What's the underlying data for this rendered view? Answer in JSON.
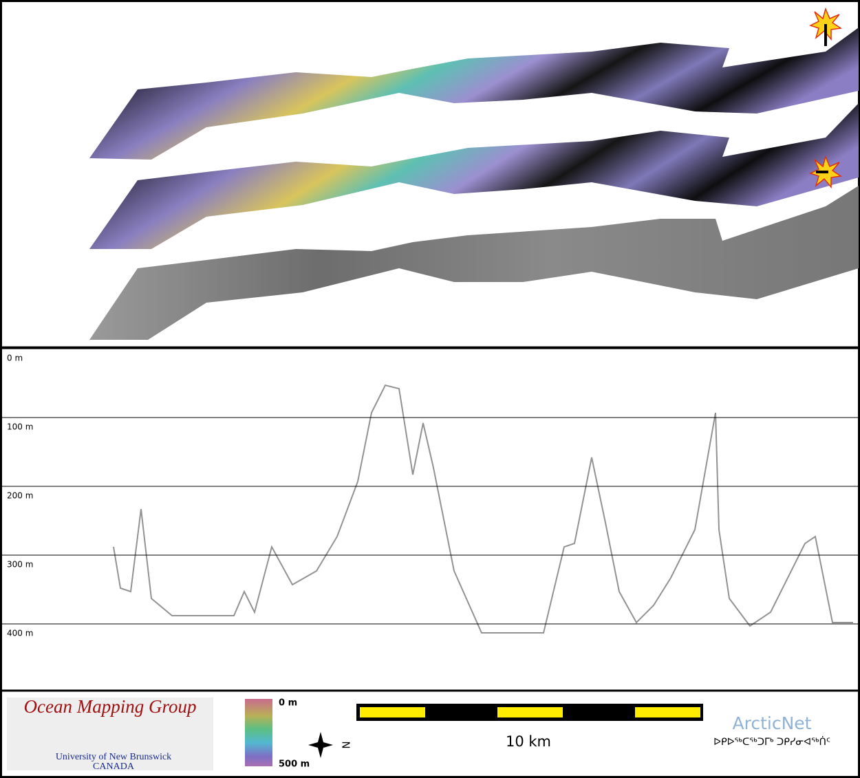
{
  "depth_profile": {
    "ylim": [
      0,
      500
    ],
    "yticks": [
      {
        "value": 0,
        "label": "0 m"
      },
      {
        "value": 100,
        "label": "100 m"
      },
      {
        "value": 200,
        "label": "200 m"
      },
      {
        "value": 300,
        "label": "300 m"
      },
      {
        "value": 400,
        "label": "400 m"
      }
    ]
  },
  "footer": {
    "logo_title": "Ocean Mapping Group",
    "logo_line_1": "University of New Brunswick",
    "logo_line_2": "CANADA",
    "colorbar_top": "0 m",
    "colorbar_bottom": "500 m",
    "north_label": "N",
    "scale_label": "10 km",
    "partner": "ArcticNet",
    "partner_syllabics": "ᐅᑭᐅᖅᑕᖅᑐᒥᒃ ᑐᑭᓯᓂᐊᖅᑏᑦ"
  }
}
